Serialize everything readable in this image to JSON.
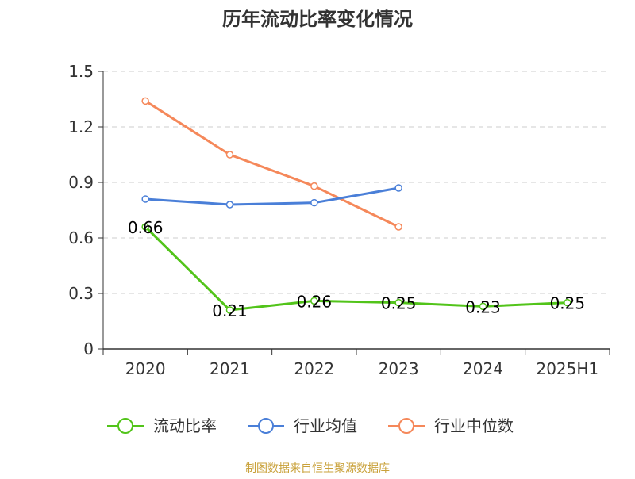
{
  "chart_data": {
    "type": "line",
    "title": "历年流动比率变化情况",
    "xlabel": "",
    "ylabel": "",
    "categories": [
      "2020",
      "2021",
      "2022",
      "2023",
      "2024",
      "2025H1"
    ],
    "ylim": [
      0,
      1.5
    ],
    "yticks": [
      "0",
      "0.3",
      "0.6",
      "0.9",
      "1.2",
      "1.5"
    ],
    "grid": true,
    "legend_position": "bottom",
    "series": [
      {
        "name": "流动比率",
        "color": "#52c41a",
        "values": [
          0.66,
          0.21,
          0.26,
          0.25,
          0.23,
          0.25
        ],
        "labels": [
          "0.66",
          "0.21",
          "0.26",
          "0.25",
          "0.23",
          "0.25"
        ]
      },
      {
        "name": "行业均值",
        "color": "#4a7fd8",
        "values": [
          0.81,
          0.78,
          0.79,
          0.87,
          null,
          null
        ]
      },
      {
        "name": "行业中位数",
        "color": "#f5885a",
        "values": [
          1.34,
          1.05,
          0.88,
          0.66,
          null,
          null
        ]
      }
    ],
    "source": "制图数据来自恒生聚源数据库"
  }
}
